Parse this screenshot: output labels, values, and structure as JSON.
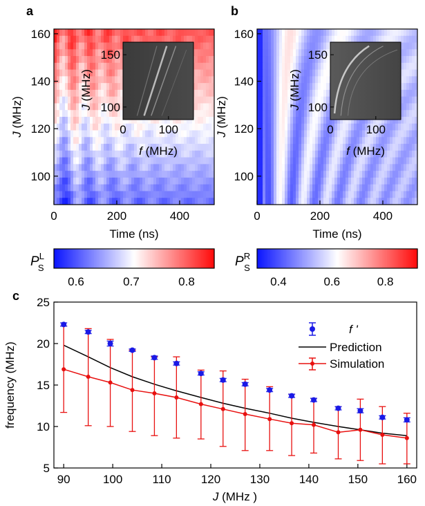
{
  "chart_data": [
    {
      "panel": "a",
      "type": "heatmap",
      "xlabel": "Time (ns)",
      "ylabel_italic": "J",
      "ylabel_rest": " (MHz)",
      "xlim": [
        0,
        510
      ],
      "ylim": [
        88,
        162
      ],
      "xticks": [
        0,
        200,
        400
      ],
      "yticks": [
        100,
        120,
        140,
        160
      ],
      "colorbar": {
        "label_main": "P",
        "label_sup": "L",
        "label_sub": "S",
        "range": [
          0.56,
          0.85
        ],
        "ticks": [
          0.6,
          0.7,
          0.8
        ],
        "colors": [
          "#0a14ff",
          "#ffffff",
          "#ff0a0a"
        ]
      },
      "inset": {
        "xlabel_italic": "f",
        "xlabel_rest": " (MHz)",
        "ylabel_italic": "J",
        "ylabel_rest": " (MHz)",
        "xlim": [
          0,
          155
        ],
        "ylim": [
          88,
          162
        ],
        "xticks": [
          0,
          100
        ],
        "yticks": [
          100,
          150
        ]
      }
    },
    {
      "panel": "b",
      "type": "heatmap",
      "xlabel": "Time (ns)",
      "ylabel_italic": "J",
      "ylabel_rest": " (MHz)",
      "xlim": [
        0,
        510
      ],
      "ylim": [
        88,
        162
      ],
      "xticks": [
        0,
        200,
        400
      ],
      "yticks": [
        100,
        120,
        140,
        160
      ],
      "colorbar": {
        "label_main": "P",
        "label_sup": "R",
        "label_sub": "S",
        "range": [
          0.32,
          0.92
        ],
        "ticks": [
          0.4,
          0.6,
          0.8
        ],
        "colors": [
          "#0a14ff",
          "#ffffff",
          "#ff0a0a"
        ]
      },
      "inset": {
        "xlabel_italic": "f",
        "xlabel_rest": " (MHz)",
        "ylabel_italic": "J",
        "ylabel_rest": " (MHz)",
        "xlim": [
          0,
          155
        ],
        "ylim": [
          88,
          162
        ],
        "xticks": [
          0,
          100
        ],
        "yticks": [
          100,
          150
        ]
      }
    },
    {
      "panel": "c",
      "type": "line",
      "xlabel_italic": "J",
      "xlabel_rest": " (MHz )",
      "ylabel": "frequency (MHz)",
      "xlim": [
        88,
        162
      ],
      "ylim": [
        5,
        25
      ],
      "xticks": [
        90,
        100,
        110,
        120,
        130,
        140,
        150,
        160
      ],
      "yticks": [
        5,
        10,
        15,
        20,
        25
      ],
      "x": [
        90,
        95,
        99.5,
        104,
        108.5,
        113,
        118,
        122.5,
        127,
        132,
        136.5,
        141,
        146,
        150.5,
        155,
        160
      ],
      "series": [
        {
          "name": "f '",
          "color": "#1a1ae6",
          "values": [
            22.3,
            21.4,
            20.0,
            19.2,
            18.3,
            17.6,
            16.4,
            15.6,
            15.1,
            14.4,
            13.7,
            13.2,
            12.2,
            11.9,
            11.1,
            10.8
          ],
          "error": [
            0.2,
            0.2,
            0.3,
            0.15,
            0.2,
            0.2,
            0.2,
            0.2,
            0.2,
            0.2,
            0.2,
            0.2,
            0.2,
            0.25,
            0.2,
            0.25
          ]
        },
        {
          "name": "Prediction",
          "color": "#000000",
          "values": [
            19.8,
            18.4,
            17.1,
            16.0,
            15.1,
            14.3,
            13.5,
            12.8,
            12.2,
            11.6,
            11.0,
            10.5,
            10.0,
            9.6,
            9.2,
            8.9
          ]
        },
        {
          "name": "Simulation",
          "color": "#e8100f",
          "values": [
            16.9,
            16.0,
            15.3,
            14.4,
            14.0,
            13.5,
            12.7,
            12.1,
            11.5,
            10.9,
            10.4,
            10.2,
            9.3,
            9.6,
            9.0,
            8.6
          ],
          "lower": [
            11.7,
            10.1,
            10.0,
            9.4,
            8.9,
            8.6,
            8.5,
            7.6,
            7.1,
            7.1,
            6.5,
            6.8,
            6.1,
            5.9,
            5.5,
            5.5
          ],
          "upper": [
            22.1,
            21.8,
            20.5,
            19.2,
            18.4,
            18.4,
            16.8,
            16.7,
            15.7,
            14.8,
            13.9,
            13.4,
            12.4,
            13.3,
            12.4,
            11.6
          ]
        }
      ],
      "legend": "top-right"
    }
  ]
}
